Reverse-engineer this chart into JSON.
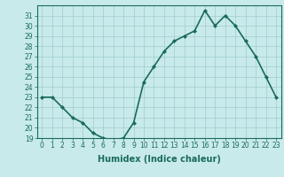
{
  "x": [
    0,
    1,
    2,
    3,
    4,
    5,
    6,
    7,
    8,
    9,
    10,
    11,
    12,
    13,
    14,
    15,
    16,
    17,
    18,
    19,
    20,
    21,
    22,
    23
  ],
  "y": [
    23,
    23,
    22,
    21,
    20.5,
    19.5,
    19,
    18.8,
    19,
    20.5,
    24.5,
    26,
    27.5,
    28.5,
    29,
    29.5,
    31.5,
    30,
    31,
    30,
    28.5,
    27,
    25,
    23
  ],
  "line_color": "#1a6b5a",
  "marker": "D",
  "marker_size": 2.0,
  "bg_color": "#c8eaea",
  "grid_color": "#a0cccc",
  "xlabel": "Humidex (Indice chaleur)",
  "xlim": [
    -0.5,
    23.5
  ],
  "ylim": [
    19,
    32
  ],
  "yticks": [
    19,
    20,
    21,
    22,
    23,
    24,
    25,
    26,
    27,
    28,
    29,
    30,
    31
  ],
  "xticks": [
    0,
    1,
    2,
    3,
    4,
    5,
    6,
    7,
    8,
    9,
    10,
    11,
    12,
    13,
    14,
    15,
    16,
    17,
    18,
    19,
    20,
    21,
    22,
    23
  ],
  "xlabel_fontsize": 7,
  "tick_fontsize": 5.5,
  "linewidth": 1.2
}
